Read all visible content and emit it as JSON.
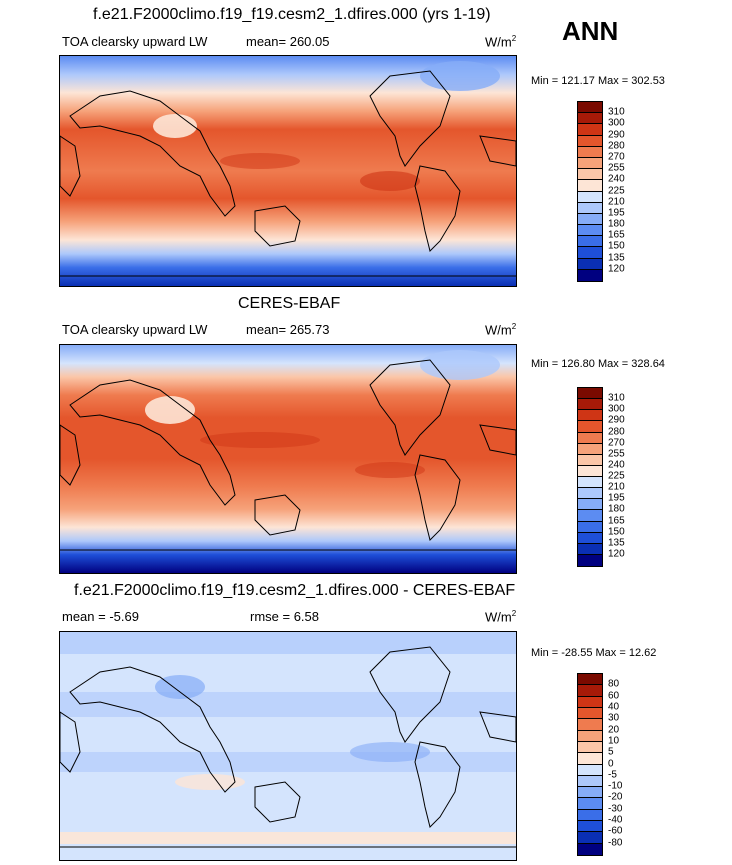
{
  "season": "ANN",
  "panels": [
    {
      "title": "f.e21.F2000climo.f19_f19.cesm2_1.dfires.000 (yrs 1-19)",
      "left_label": "TOA clearsky upward LW",
      "center_label": "mean= 260.05",
      "units": "W/m",
      "units_sup": "2",
      "minmax": "Min = 121.17 Max = 302.53",
      "colorbar_labels": [
        "310",
        "300",
        "290",
        "280",
        "270",
        "255",
        "240",
        "225",
        "210",
        "195",
        "180",
        "165",
        "150",
        "135",
        "120"
      ]
    },
    {
      "title": "CERES-EBAF",
      "left_label": "TOA clearsky upward LW",
      "center_label": "mean= 265.73",
      "units": "W/m",
      "units_sup": "2",
      "minmax": "Min = 126.80 Max = 328.64",
      "colorbar_labels": [
        "310",
        "300",
        "290",
        "280",
        "270",
        "255",
        "240",
        "225",
        "210",
        "195",
        "180",
        "165",
        "150",
        "135",
        "120"
      ]
    },
    {
      "title": "f.e21.F2000climo.f19_f19.cesm2_1.dfires.000 - CERES-EBAF",
      "left_label": "mean =  -5.69",
      "center_label": "rmse =   6.58",
      "units": "W/m",
      "units_sup": "2",
      "minmax": "Min = -28.55 Max =  12.62",
      "colorbar_labels": [
        "80",
        "60",
        "40",
        "30",
        "20",
        "10",
        "5",
        "0",
        "-5",
        "-10",
        "-20",
        "-30",
        "-40",
        "-60",
        "-80"
      ]
    }
  ],
  "colors": {
    "abs_scale": [
      "#000080",
      "#0a2fb4",
      "#1e4fd8",
      "#3a6ee8",
      "#5c8cf2",
      "#86acf7",
      "#adc8fb",
      "#d4e4fd",
      "#fde5d6",
      "#fbc6a8",
      "#f6a27a",
      "#ef7b4f",
      "#e4562c",
      "#cf3515",
      "#a61a08",
      "#7a0a00"
    ],
    "diff_scale": [
      "#000080",
      "#0a2fb4",
      "#1e4fd8",
      "#3a6ee8",
      "#5c8cf2",
      "#86acf7",
      "#adc8fb",
      "#d4e4fd",
      "#fde5d6",
      "#fbc6a8",
      "#f6a27a",
      "#ef7b4f",
      "#e4562c",
      "#cf3515",
      "#a61a08",
      "#7a0a00"
    ]
  }
}
